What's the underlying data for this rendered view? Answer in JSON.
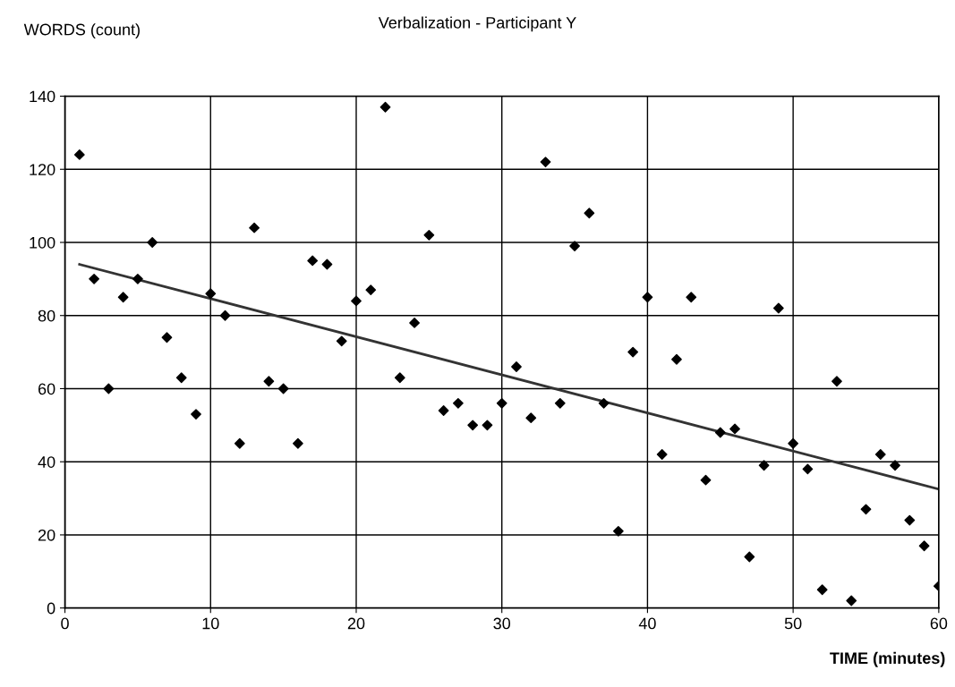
{
  "chart_data": {
    "type": "scatter",
    "title": "Verbalization - Participant Y",
    "xlabel": "TIME (minutes)",
    "ylabel": "WORDS (count)",
    "series": [
      {
        "color": "#000000",
        "marker": "diamond",
        "x": [
          1,
          2,
          3,
          4,
          5,
          6,
          7,
          8,
          9,
          10,
          11,
          12,
          13,
          14,
          15,
          16,
          17,
          18,
          19,
          20,
          21,
          22,
          23,
          24,
          25,
          26,
          27,
          28,
          29,
          30,
          31,
          32,
          33,
          34,
          35,
          36,
          37,
          38,
          39,
          40,
          41,
          42,
          43,
          44,
          45,
          46,
          47,
          48,
          49,
          50,
          51,
          52,
          53,
          54,
          55,
          56,
          57,
          58,
          59,
          60
        ],
        "values": [
          124,
          90,
          60,
          85,
          90,
          100,
          74,
          63,
          53,
          86,
          80,
          45,
          104,
          62,
          60,
          45,
          95,
          94,
          73,
          84,
          87,
          137,
          63,
          78,
          102,
          54,
          56,
          50,
          50,
          56,
          66,
          52,
          122,
          56,
          99,
          108,
          56,
          21,
          70,
          85,
          42,
          68,
          85,
          35,
          48,
          49,
          14,
          39,
          82,
          45,
          38,
          5,
          62,
          2,
          27,
          42,
          39,
          24,
          17,
          6
        ]
      },
      {
        "type": "line",
        "color": "#333333",
        "marker": "none",
        "line_style": "solid",
        "x": [
          1,
          60
        ],
        "values": [
          94,
          32.5
        ]
      }
    ],
    "xlim": [
      0,
      60
    ],
    "xticks": [
      0,
      10,
      20,
      30,
      40,
      50,
      60
    ],
    "ylim": [
      0,
      140
    ],
    "yticks": [
      0,
      20,
      40,
      60,
      80,
      100,
      120,
      140
    ],
    "grid": true
  }
}
